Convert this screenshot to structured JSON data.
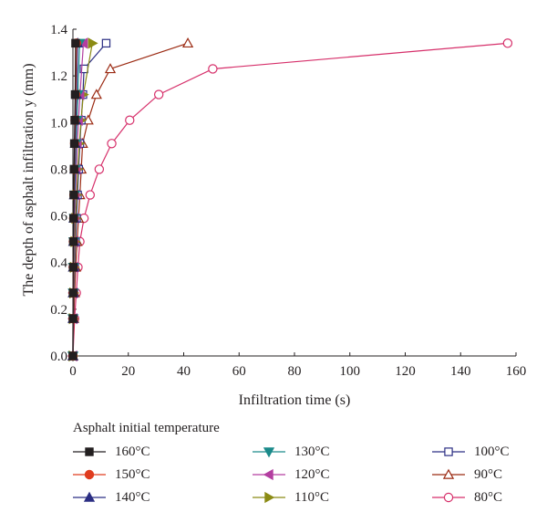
{
  "chart_data": {
    "type": "line",
    "xlabel": "Infiltration time (s)",
    "ylabel": "The depth of asphalt infiltration y (mm)",
    "xlim": [
      0,
      160
    ],
    "ylim": [
      0,
      1.4
    ],
    "x_ticks": [
      "0",
      "20",
      "40",
      "60",
      "80",
      "100",
      "120",
      "140",
      "160"
    ],
    "y_ticks": [
      "0.0",
      "0.2",
      "0.4",
      "0.6",
      "0.8",
      "1.0",
      "1.2",
      "1.4"
    ],
    "legend_title": "Asphalt initial temperature",
    "legend_position": "bottom",
    "grid": false,
    "series": [
      {
        "name": "160°C",
        "color": "#231f20",
        "marker": "square-filled",
        "x": [
          0,
          0.02,
          0.05,
          0.09,
          0.15,
          0.22,
          0.3,
          0.4,
          0.52,
          0.66,
          0.8,
          0.95
        ],
        "y": [
          0,
          0.16,
          0.27,
          0.38,
          0.49,
          0.59,
          0.69,
          0.8,
          0.91,
          1.01,
          1.12,
          1.34
        ]
      },
      {
        "name": "150°C",
        "color": "#e03c1f",
        "marker": "circle-filled",
        "x": [
          0,
          0.03,
          0.07,
          0.12,
          0.19,
          0.28,
          0.38,
          0.5,
          0.64,
          0.8,
          1.0,
          1.25
        ],
        "y": [
          0,
          0.16,
          0.27,
          0.38,
          0.49,
          0.59,
          0.69,
          0.8,
          0.91,
          1.01,
          1.12,
          1.34
        ]
      },
      {
        "name": "140°C",
        "color": "#2b2e83",
        "marker": "triangle-up-filled",
        "x": [
          0,
          0.04,
          0.09,
          0.16,
          0.25,
          0.37,
          0.5,
          0.66,
          0.85,
          1.07,
          1.33,
          1.7
        ],
        "y": [
          0,
          0.16,
          0.27,
          0.38,
          0.49,
          0.59,
          0.69,
          0.8,
          0.91,
          1.01,
          1.12,
          1.34
        ]
      },
      {
        "name": "130°C",
        "color": "#1a8a8a",
        "marker": "triangle-down-filled",
        "x": [
          0,
          0.05,
          0.12,
          0.21,
          0.33,
          0.48,
          0.66,
          0.87,
          1.12,
          1.42,
          1.78,
          2.4
        ],
        "y": [
          0,
          0.16,
          0.27,
          0.38,
          0.49,
          0.59,
          0.69,
          0.8,
          0.91,
          1.01,
          1.12,
          1.34
        ]
      },
      {
        "name": "120°C",
        "color": "#b33ea0",
        "marker": "triangle-left-filled",
        "x": [
          0,
          0.07,
          0.17,
          0.3,
          0.47,
          0.68,
          0.93,
          1.23,
          1.58,
          2.0,
          2.55,
          3.8
        ],
        "y": [
          0,
          0.16,
          0.27,
          0.38,
          0.49,
          0.59,
          0.69,
          0.8,
          0.91,
          1.01,
          1.12,
          1.34
        ]
      },
      {
        "name": "110°C",
        "color": "#8b8b14",
        "marker": "triangle-right-filled",
        "x": [
          0,
          0.1,
          0.25,
          0.45,
          0.7,
          1.0,
          1.37,
          1.8,
          2.32,
          2.95,
          3.75,
          7.0
        ],
        "y": [
          0,
          0.16,
          0.27,
          0.38,
          0.49,
          0.59,
          0.69,
          0.8,
          0.91,
          1.01,
          1.12,
          1.34
        ]
      },
      {
        "name": "100°C",
        "color": "#2b2e83",
        "marker": "square-open",
        "x": [
          0,
          0.15,
          0.36,
          0.63,
          0.95,
          1.3,
          1.65,
          2.05,
          2.5,
          3.0,
          3.6,
          4.0,
          12.0
        ],
        "y": [
          0,
          0.16,
          0.27,
          0.38,
          0.49,
          0.59,
          0.69,
          0.8,
          0.91,
          1.01,
          1.12,
          1.23,
          1.34
        ]
      },
      {
        "name": "90°C",
        "color": "#9b2a12",
        "marker": "triangle-up-open",
        "x": [
          0,
          0.3,
          0.6,
          1.0,
          1.5,
          2.0,
          2.5,
          3.0,
          3.5,
          5.5,
          8.5,
          13.5,
          41.5
        ],
        "y": [
          0,
          0.16,
          0.27,
          0.38,
          0.49,
          0.59,
          0.69,
          0.8,
          0.91,
          1.01,
          1.12,
          1.23,
          1.34
        ]
      },
      {
        "name": "80°C",
        "color": "#d62f6a",
        "marker": "circle-open",
        "x": [
          0,
          0.6,
          1.2,
          1.8,
          2.5,
          4.0,
          6.2,
          9.5,
          14.0,
          20.5,
          31.0,
          50.5,
          157.0
        ],
        "y": [
          0,
          0.16,
          0.27,
          0.38,
          0.49,
          0.59,
          0.69,
          0.8,
          0.91,
          1.01,
          1.12,
          1.23,
          1.34
        ]
      }
    ]
  }
}
